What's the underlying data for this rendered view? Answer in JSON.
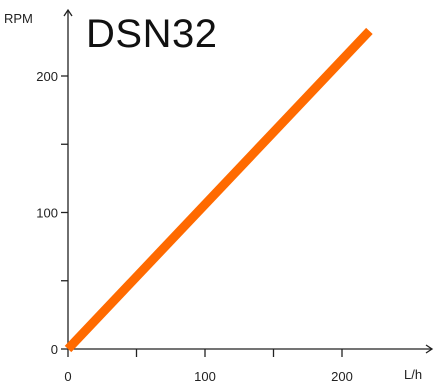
{
  "chart_data": {
    "type": "line",
    "title": "DSN32",
    "xlabel": "L/h",
    "ylabel": "RPM",
    "xlim": [
      0,
      260
    ],
    "ylim": [
      0,
      250
    ],
    "x_major_ticks": [
      0,
      100,
      200
    ],
    "x_minor_ticks": [
      50,
      150
    ],
    "y_major_ticks": [
      0,
      100,
      200
    ],
    "y_minor_ticks": [
      50,
      150
    ],
    "grid": false,
    "series": [
      {
        "x": [
          0,
          220
        ],
        "y": [
          0,
          233
        ],
        "color": "#ff6a00"
      }
    ]
  }
}
